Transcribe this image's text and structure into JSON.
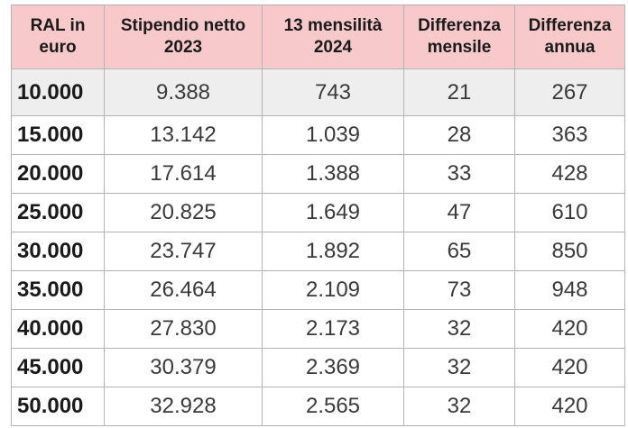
{
  "table": {
    "headers": [
      "RAL in euro",
      "Stipendio netto 2023",
      "13 mensilità 2024",
      "Differenza mensile",
      "Differenza annua"
    ],
    "rows": [
      [
        "10.000",
        "9.388",
        "743",
        "21",
        "267"
      ],
      [
        "15.000",
        "13.142",
        "1.039",
        "28",
        "363"
      ],
      [
        "20.000",
        "17.614",
        "1.388",
        "33",
        "428"
      ],
      [
        "25.000",
        "20.825",
        "1.649",
        "47",
        "610"
      ],
      [
        "30.000",
        "23.747",
        "1.892",
        "65",
        "850"
      ],
      [
        "35.000",
        "26.464",
        "2.109",
        "73",
        "948"
      ],
      [
        "40.000",
        "27.830",
        "2.173",
        "32",
        "420"
      ],
      [
        "45.000",
        "30.379",
        "2.369",
        "32",
        "420"
      ],
      [
        "50.000",
        "32.928",
        "2.565",
        "32",
        "420"
      ]
    ]
  },
  "colors": {
    "header_background": "#f7c9cb",
    "first_row_background": "#eeeeee",
    "border": "#b3b3b3"
  }
}
